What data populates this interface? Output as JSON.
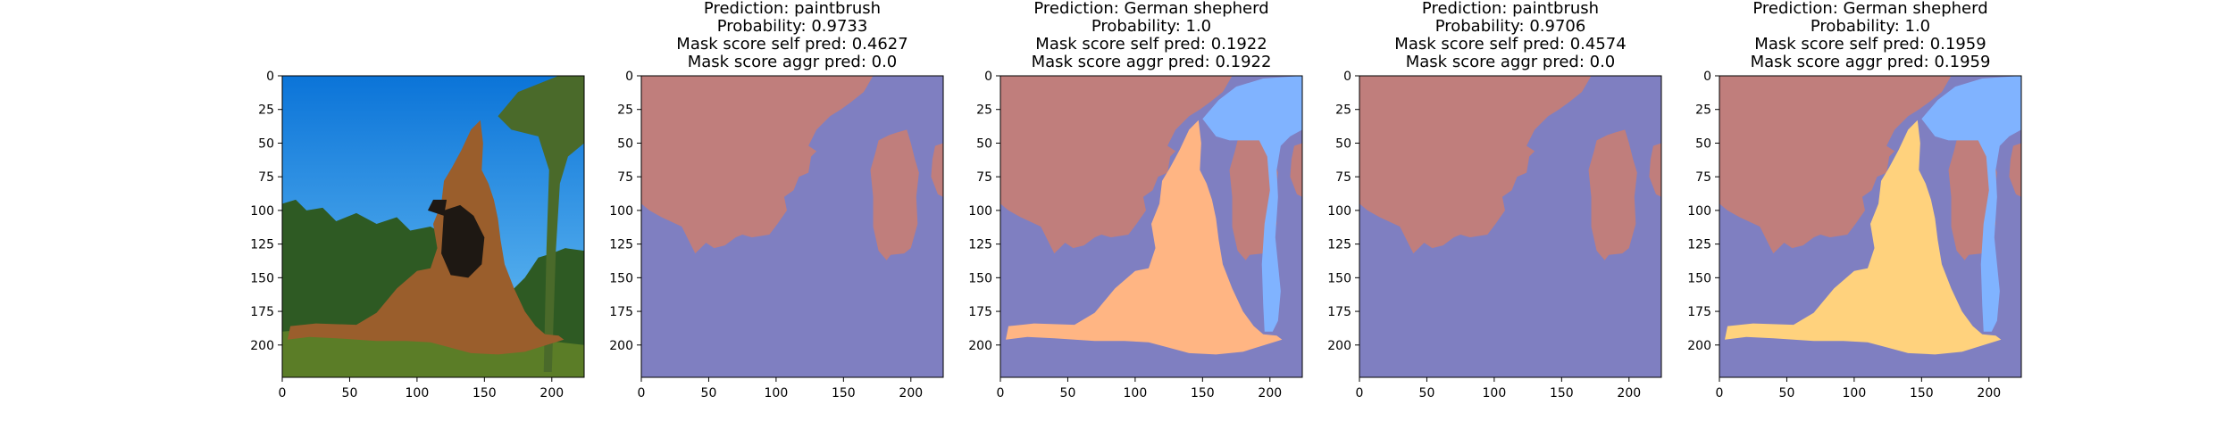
{
  "chart_data": [
    {
      "type": "image",
      "title_lines": [],
      "xlim": [
        0,
        224
      ],
      "ylim": [
        224,
        0
      ],
      "xticks": [
        0,
        50,
        100,
        150,
        200
      ],
      "yticks": [
        0,
        25,
        50,
        75,
        100,
        125,
        150,
        175,
        200
      ],
      "image_content": "photo-german-shepherd",
      "overlays": []
    },
    {
      "type": "image",
      "title_lines": [
        "Prediction: paintbrush",
        "Probability: 0.9733",
        "Mask score self pred: 0.4627",
        "Mask score aggr pred: 0.0"
      ],
      "xlim": [
        0,
        224
      ],
      "ylim": [
        224,
        0
      ],
      "xticks": [
        0,
        50,
        100,
        150,
        200
      ],
      "yticks": [
        0,
        25,
        50,
        75,
        100,
        125,
        150,
        175,
        200
      ],
      "image_content": "segmentation",
      "overlays": [
        "sky",
        "trees",
        "right-tree"
      ]
    },
    {
      "type": "image",
      "title_lines": [
        "Prediction: German shepherd",
        "Probability: 1.0",
        "Mask score self pred: 0.1922",
        "Mask score aggr pred: 0.1922"
      ],
      "xlim": [
        0,
        224
      ],
      "ylim": [
        224,
        0
      ],
      "xticks": [
        0,
        50,
        100,
        150,
        200
      ],
      "yticks": [
        0,
        25,
        50,
        75,
        100,
        125,
        150,
        175,
        200
      ],
      "image_content": "segmentation",
      "overlays": [
        "sky",
        "trees",
        "right-tree",
        "palm",
        "dog"
      ],
      "dog_color": "#ffb583"
    },
    {
      "type": "image",
      "title_lines": [
        "Prediction: paintbrush",
        "Probability: 0.9706",
        "Mask score self pred: 0.4574",
        "Mask score aggr pred: 0.0"
      ],
      "xlim": [
        0,
        224
      ],
      "ylim": [
        224,
        0
      ],
      "xticks": [
        0,
        50,
        100,
        150,
        200
      ],
      "yticks": [
        0,
        25,
        50,
        75,
        100,
        125,
        150,
        175,
        200
      ],
      "image_content": "segmentation",
      "overlays": [
        "sky",
        "trees",
        "right-tree"
      ]
    },
    {
      "type": "image",
      "title_lines": [
        "Prediction: German shepherd",
        "Probability: 1.0",
        "Mask score self pred: 0.1959",
        "Mask score aggr pred: 0.1959"
      ],
      "xlim": [
        0,
        224
      ],
      "ylim": [
        224,
        0
      ],
      "xticks": [
        0,
        50,
        100,
        150,
        200
      ],
      "yticks": [
        0,
        25,
        50,
        75,
        100,
        125,
        150,
        175,
        200
      ],
      "image_content": "segmentation",
      "overlays": [
        "sky",
        "trees",
        "right-tree",
        "palm",
        "dog"
      ],
      "dog_color": "#ffd27d"
    }
  ],
  "colors": {
    "background_blue": "#7f7fc1",
    "trees_region": "#c07e7c",
    "palm_region": "#80b3ff",
    "sky_top": "#0b74d8",
    "sky_bottom": "#6fc3f5",
    "grass": "#5b7d27",
    "dog_body": "#9a5e2c",
    "dog_dark": "#1e1813"
  }
}
